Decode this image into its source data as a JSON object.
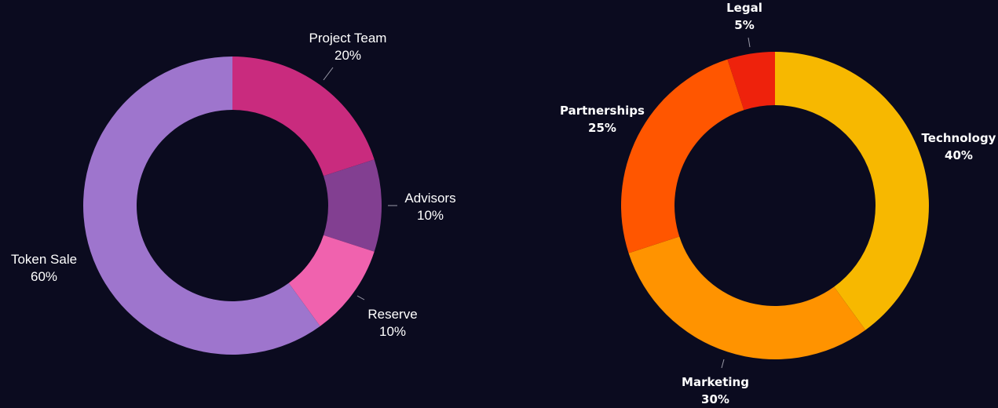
{
  "chart_data": [
    {
      "type": "pie",
      "categories": [
        "Project Team",
        "Advisors",
        "Reserve",
        "Token Sale"
      ],
      "values": [
        20,
        10,
        10,
        60
      ],
      "display": [
        "20%",
        "10%",
        "10%",
        "60%"
      ],
      "colors": [
        "#c92b7e",
        "#823f91",
        "#f062ae",
        "#9e75cd"
      ],
      "title": "",
      "legend": "none"
    },
    {
      "type": "pie",
      "categories": [
        "Technology",
        "Marketing",
        "Partnerships",
        "Legal"
      ],
      "values": [
        40,
        30,
        25,
        5
      ],
      "display": [
        "40%",
        "30%",
        "25%",
        "5%"
      ],
      "colors": [
        "#f7b800",
        "#ff9300",
        "#ff5600",
        "#ee220c"
      ],
      "title": "",
      "legend": "none"
    }
  ]
}
